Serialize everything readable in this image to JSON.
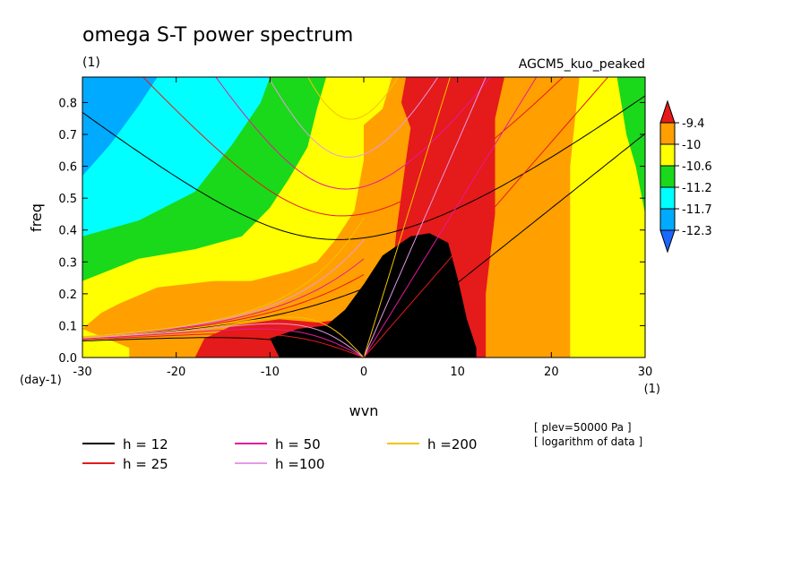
{
  "chart_data": {
    "type": "heatmap",
    "title": "omega S-T power spectrum",
    "subtitle_left": "(1)",
    "subtitle_right": "AGCM5_kuo_peaked",
    "xlabel": "wvn",
    "ylabel": "freq",
    "x_unit_label": "(1)",
    "y_unit_label": "(day-1)",
    "xlim": [
      -30,
      30
    ],
    "ylim": [
      0.0,
      0.88
    ],
    "x_ticks": [
      {
        "value": -30,
        "label": "-30"
      },
      {
        "value": -20,
        "label": "-20"
      },
      {
        "value": -10,
        "label": "-10"
      },
      {
        "value": 0,
        "label": "0"
      },
      {
        "value": 10,
        "label": "10"
      },
      {
        "value": 20,
        "label": "20"
      },
      {
        "value": 30,
        "label": "30"
      }
    ],
    "y_ticks": [
      {
        "value": 0.0,
        "label": "0.0"
      },
      {
        "value": 0.1,
        "label": "0.1"
      },
      {
        "value": 0.2,
        "label": "0.2"
      },
      {
        "value": 0.3,
        "label": "0.3"
      },
      {
        "value": 0.4,
        "label": "0.4"
      },
      {
        "value": 0.5,
        "label": "0.5"
      },
      {
        "value": 0.6,
        "label": "0.6"
      },
      {
        "value": 0.7,
        "label": "0.7"
      },
      {
        "value": 0.8,
        "label": "0.8"
      }
    ],
    "colorbar": {
      "levels": [
        "-9.4",
        "-10",
        "-10.6",
        "-11.2",
        "-11.7",
        "-12.3"
      ],
      "colors": [
        "#e51a1a",
        "#ff9f00",
        "#ffff00",
        "#1ad91a",
        "#00ffff",
        "#00aaff",
        "#1a66ff"
      ]
    },
    "fill_regions": [
      {
        "level": 1,
        "points": [
          [
            -30,
            0.88
          ],
          [
            30,
            0.88
          ],
          [
            30,
            0.0
          ],
          [
            -30,
            0.0
          ]
        ]
      },
      {
        "level": 2,
        "points": [
          [
            -30,
            0.57
          ],
          [
            -27,
            0.67
          ],
          [
            -24,
            0.79
          ],
          [
            -22,
            0.88
          ],
          [
            30,
            0.88
          ],
          [
            30,
            0.0
          ],
          [
            -30,
            0.0
          ]
        ]
      },
      {
        "level": 3,
        "points": [
          [
            -30,
            0.38
          ],
          [
            -24,
            0.43
          ],
          [
            -18,
            0.52
          ],
          [
            -14,
            0.67
          ],
          [
            -11,
            0.8
          ],
          [
            -10,
            0.88
          ],
          [
            30,
            0.88
          ],
          [
            30,
            0.0
          ],
          [
            -30,
            0.0
          ]
        ]
      },
      {
        "level": 4,
        "points": [
          [
            -30,
            0.24
          ],
          [
            -24,
            0.31
          ],
          [
            -18,
            0.34
          ],
          [
            -13,
            0.38
          ],
          [
            -10,
            0.47
          ],
          [
            -8,
            0.56
          ],
          [
            -6,
            0.66
          ],
          [
            -5,
            0.78
          ],
          [
            -4,
            0.88
          ],
          [
            27,
            0.88
          ],
          [
            28,
            0.7
          ],
          [
            29,
            0.6
          ],
          [
            30,
            0.45
          ],
          [
            30,
            0.0
          ],
          [
            -30,
            0.0
          ]
        ]
      },
      {
        "level": 5,
        "points": [
          [
            -30,
            0.09
          ],
          [
            -28,
            0.14
          ],
          [
            -26,
            0.17
          ],
          [
            -22,
            0.22
          ],
          [
            -16,
            0.24
          ],
          [
            -12,
            0.24
          ],
          [
            -8,
            0.27
          ],
          [
            -5,
            0.3
          ],
          [
            -3,
            0.37
          ],
          [
            -1,
            0.46
          ],
          [
            0,
            0.62
          ],
          [
            0,
            0.73
          ],
          [
            2,
            0.78
          ],
          [
            3,
            0.88
          ],
          [
            23,
            0.88
          ],
          [
            22,
            0.6
          ],
          [
            22,
            0.3
          ],
          [
            22,
            0.0
          ],
          [
            -25,
            0.0
          ],
          [
            -25,
            0.03
          ]
        ]
      },
      {
        "level": 6,
        "points": [
          [
            -18,
            0.0
          ],
          [
            -17,
            0.06
          ],
          [
            -14,
            0.1
          ],
          [
            -9,
            0.12
          ],
          [
            -5,
            0.11
          ],
          [
            -2,
            0.12
          ],
          [
            1,
            0.16
          ],
          [
            3,
            0.26
          ],
          [
            3.5,
            0.4
          ],
          [
            4.5,
            0.62
          ],
          [
            5,
            0.72
          ],
          [
            4,
            0.8
          ],
          [
            4.5,
            0.88
          ],
          [
            15,
            0.88
          ],
          [
            14,
            0.75
          ],
          [
            14,
            0.6
          ],
          [
            14,
            0.45
          ],
          [
            13,
            0.2
          ],
          [
            13,
            0.0
          ]
        ]
      },
      {
        "level": 7,
        "points": [
          [
            -9,
            0.0
          ],
          [
            -10,
            0.06
          ],
          [
            -7,
            0.09
          ],
          [
            -4,
            0.1
          ],
          [
            -2,
            0.15
          ],
          [
            0,
            0.23
          ],
          [
            2,
            0.32
          ],
          [
            5,
            0.38
          ],
          [
            7,
            0.39
          ],
          [
            9,
            0.36
          ],
          [
            10,
            0.25
          ],
          [
            11,
            0.12
          ],
          [
            12,
            0.03
          ],
          [
            12,
            0.0
          ]
        ]
      }
    ],
    "series": [
      {
        "name": "h = 12",
        "color": "#000000",
        "h": 12
      },
      {
        "name": "h = 25",
        "color": "#e51a1a",
        "h": 25
      },
      {
        "name": "h = 50",
        "color": "#e6199a",
        "h": 50
      },
      {
        "name": "h =100",
        "color": "#e59ae5",
        "h": 100
      },
      {
        "name": "h =200",
        "color": "#f2c400",
        "h": 200
      }
    ],
    "notes": [
      "[ plev=50000 Pa ]",
      "[ logarithm of data ]"
    ]
  }
}
